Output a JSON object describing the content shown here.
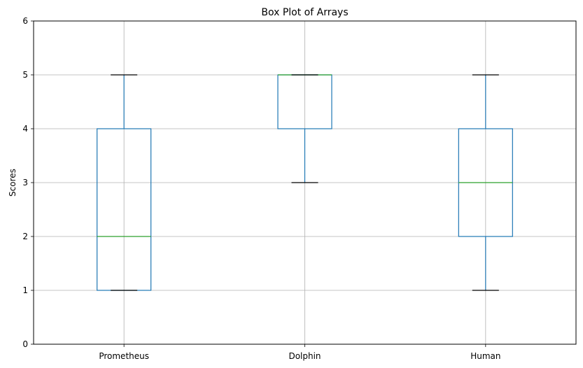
{
  "chart_data": {
    "type": "box",
    "title": "Box Plot of Arrays",
    "xlabel": "",
    "ylabel": "Scores",
    "ylim": [
      0,
      6
    ],
    "yticks": [
      "0",
      "1",
      "2",
      "3",
      "4",
      "5",
      "6"
    ],
    "grid": true,
    "categories": [
      "Prometheus",
      "Dolphin",
      "Human"
    ],
    "boxes": [
      {
        "whisker_low": 1,
        "q1": 1,
        "median": 2,
        "q3": 4,
        "whisker_high": 5
      },
      {
        "whisker_low": 3,
        "q1": 4,
        "median": 5,
        "q3": 5,
        "whisker_high": 5
      },
      {
        "whisker_low": 1,
        "q1": 2,
        "median": 3,
        "q3": 4,
        "whisker_high": 5
      }
    ],
    "colors": {
      "box": "#1f77b4",
      "median": "#2ca02c",
      "cap": "#000000",
      "grid": "#b0b0b0",
      "axes": "#000000"
    }
  }
}
